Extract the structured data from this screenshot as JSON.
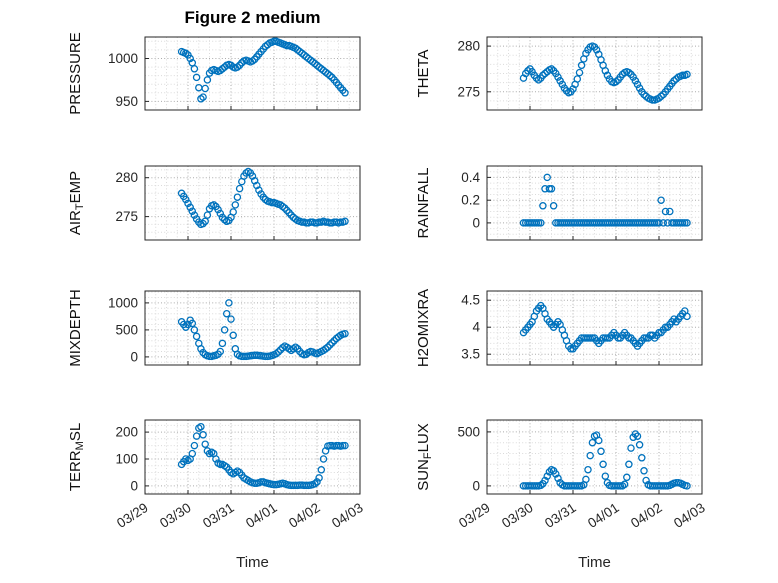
{
  "chart_data": {
    "type": "scatter",
    "title": "Figure 2 medium",
    "xlabel": "Time",
    "x_tick_labels": [
      "03/29",
      "03/30",
      "03/31",
      "04/01",
      "04/02",
      "04/03"
    ],
    "xlim": [
      0,
      5
    ],
    "x_units": "days since 03/29",
    "grid": true,
    "minor_grid": true,
    "marker": {
      "shape": "open-circle",
      "color": "#0072BD"
    },
    "x0": 0.85,
    "dx": 0.05,
    "subplots": [
      {
        "name": "PRESSURE",
        "ylabel": "PRESSURE",
        "row": 0,
        "col": 0,
        "ylim": [
          940,
          1025
        ],
        "yticks": [
          950,
          1000
        ],
        "yminor": 10,
        "y": [
          1008,
          1007,
          1006,
          1004,
          1000,
          995,
          988,
          978,
          966,
          953,
          955,
          965,
          975,
          983,
          986,
          987,
          986,
          985,
          986,
          988,
          990,
          992,
          993,
          992,
          990,
          989,
          990,
          992,
          995,
          997,
          998,
          997,
          996,
          997,
          999,
          1002,
          1005,
          1008,
          1011,
          1014,
          1016,
          1018,
          1019,
          1020,
          1020,
          1019,
          1018,
          1017,
          1016,
          1015,
          1015,
          1014,
          1013,
          1012,
          1010,
          1008,
          1006,
          1004,
          1002,
          1000,
          998,
          996,
          994,
          992,
          990,
          988,
          986,
          984,
          982,
          980,
          978,
          975,
          972,
          969,
          966,
          963,
          960
        ]
      },
      {
        "name": "THETA",
        "ylabel": "THETA",
        "row": 0,
        "col": 1,
        "ylim": [
          273,
          281
        ],
        "yticks": [
          275,
          280
        ],
        "yminor": 1,
        "y": [
          276.5,
          277.0,
          277.3,
          277.5,
          277.2,
          276.8,
          276.5,
          276.3,
          276.5,
          276.8,
          277.0,
          277.2,
          277.4,
          277.5,
          277.3,
          277.0,
          276.6,
          276.2,
          275.8,
          275.4,
          275.1,
          274.9,
          275.0,
          275.3,
          275.8,
          276.4,
          277.1,
          277.9,
          278.6,
          279.2,
          279.6,
          279.9,
          280.0,
          279.9,
          279.6,
          279.1,
          278.5,
          277.9,
          277.3,
          276.8,
          276.4,
          276.1,
          276.0,
          276.1,
          276.3,
          276.6,
          276.9,
          277.1,
          277.2,
          277.1,
          276.9,
          276.6,
          276.2,
          275.8,
          275.4,
          275.0,
          274.7,
          274.5,
          274.3,
          274.2,
          274.1,
          274.1,
          274.2,
          274.3,
          274.5,
          274.7,
          275.0,
          275.3,
          275.6,
          275.9,
          276.2,
          276.4,
          276.6,
          276.7,
          276.8,
          276.8,
          276.9
        ]
      },
      {
        "name": "AIR_TEMP",
        "ylabel": "AIR_TEMP",
        "row": 1,
        "col": 0,
        "ylim": [
          272,
          281.5
        ],
        "yticks": [
          275,
          280
        ],
        "yminor": 1,
        "y": [
          278.0,
          277.6,
          277.2,
          276.7,
          276.2,
          275.7,
          275.2,
          274.7,
          274.3,
          274.0,
          274.1,
          274.4,
          275.2,
          276.0,
          276.4,
          276.5,
          276.3,
          275.9,
          275.4,
          274.9,
          274.6,
          274.4,
          274.5,
          274.9,
          275.6,
          276.5,
          277.5,
          278.6,
          279.5,
          280.2,
          280.6,
          280.8,
          280.6,
          280.2,
          279.6,
          279.0,
          278.4,
          277.9,
          277.5,
          277.2,
          277.0,
          276.9,
          276.8,
          276.8,
          276.7,
          276.6,
          276.5,
          276.3,
          276.1,
          275.8,
          275.5,
          275.2,
          274.9,
          274.7,
          274.5,
          274.4,
          274.3,
          274.3,
          274.2,
          274.2,
          274.3,
          274.3,
          274.2,
          274.2,
          274.3,
          274.3,
          274.4,
          274.3,
          274.3,
          274.2,
          274.2,
          274.3,
          274.3,
          274.2,
          274.3,
          274.3,
          274.4
        ]
      },
      {
        "name": "RAINFALL",
        "ylabel": "RAINFALL",
        "row": 1,
        "col": 1,
        "ylim": [
          -0.15,
          0.5
        ],
        "yticks": [
          0,
          0.2,
          0.4
        ],
        "yminor": 0.05,
        "y": [
          0,
          0,
          0,
          0,
          0,
          0,
          0,
          0,
          0,
          0.15,
          0.3,
          0.4,
          0.3,
          0.3,
          0.15,
          0,
          0,
          0,
          0,
          0,
          0,
          0,
          0,
          0,
          0,
          0,
          0,
          0,
          0,
          0,
          0,
          0,
          0,
          0,
          0,
          0,
          0,
          0,
          0,
          0,
          0,
          0,
          0,
          0,
          0,
          0,
          0,
          0,
          0,
          0,
          0,
          0,
          0,
          0,
          0,
          0,
          0,
          0,
          0,
          0,
          0,
          0,
          0,
          0,
          0.2,
          0,
          0.1,
          0,
          0.1,
          0,
          0,
          0,
          0,
          0,
          0,
          0,
          0
        ]
      },
      {
        "name": "MIXDEPTH",
        "ylabel": "MIXDEPTH",
        "row": 2,
        "col": 0,
        "ylim": [
          -150,
          1220
        ],
        "yticks": [
          0,
          500,
          1000
        ],
        "yminor": 100,
        "y": [
          650,
          600,
          550,
          600,
          680,
          620,
          500,
          380,
          250,
          150,
          80,
          40,
          20,
          10,
          10,
          20,
          30,
          50,
          100,
          250,
          500,
          800,
          1000,
          700,
          400,
          150,
          50,
          20,
          10,
          10,
          10,
          15,
          20,
          25,
          30,
          30,
          25,
          20,
          15,
          10,
          10,
          15,
          25,
          40,
          60,
          90,
          130,
          170,
          200,
          180,
          150,
          120,
          150,
          180,
          150,
          100,
          60,
          40,
          50,
          80,
          100,
          90,
          70,
          60,
          80,
          100,
          120,
          150,
          180,
          220,
          260,
          300,
          340,
          370,
          400,
          420,
          430
        ]
      },
      {
        "name": "H2OMIXRA",
        "ylabel": "H2OMIXRA",
        "row": 2,
        "col": 1,
        "ylim": [
          3.3,
          4.67
        ],
        "yticks": [
          3.5,
          4,
          4.5
        ],
        "yminor": 0.1,
        "y": [
          3.9,
          3.95,
          4.0,
          4.05,
          4.1,
          4.2,
          4.3,
          4.35,
          4.4,
          4.35,
          4.25,
          4.15,
          4.1,
          4.05,
          4.0,
          4.05,
          4.1,
          4.05,
          3.95,
          3.85,
          3.75,
          3.65,
          3.6,
          3.6,
          3.65,
          3.7,
          3.75,
          3.8,
          3.8,
          3.8,
          3.8,
          3.8,
          3.8,
          3.8,
          3.75,
          3.7,
          3.75,
          3.8,
          3.8,
          3.8,
          3.8,
          3.85,
          3.9,
          3.85,
          3.8,
          3.8,
          3.85,
          3.9,
          3.85,
          3.8,
          3.8,
          3.75,
          3.7,
          3.65,
          3.7,
          3.75,
          3.8,
          3.8,
          3.8,
          3.85,
          3.85,
          3.8,
          3.85,
          3.9,
          3.9,
          3.95,
          4.0,
          4.0,
          4.05,
          4.1,
          4.15,
          4.1,
          4.15,
          4.2,
          4.25,
          4.3,
          4.2
        ]
      },
      {
        "name": "TERR_MSL",
        "ylabel": "TERR_MSL",
        "row": 3,
        "col": 0,
        "ylim": [
          -30,
          245
        ],
        "yticks": [
          0,
          100,
          200
        ],
        "yminor": 25,
        "y": [
          80,
          90,
          100,
          95,
          100,
          120,
          150,
          185,
          215,
          220,
          190,
          155,
          130,
          120,
          125,
          120,
          100,
          85,
          80,
          80,
          75,
          70,
          60,
          50,
          45,
          50,
          55,
          50,
          40,
          30,
          25,
          20,
          15,
          12,
          10,
          10,
          12,
          15,
          15,
          12,
          10,
          8,
          6,
          5,
          5,
          6,
          8,
          10,
          8,
          5,
          3,
          2,
          2,
          2,
          2,
          3,
          3,
          2,
          2,
          2,
          3,
          5,
          8,
          15,
          30,
          60,
          100,
          130,
          148,
          150,
          150,
          148,
          150,
          150,
          148,
          150,
          150
        ]
      },
      {
        "name": "SUN_FLUX",
        "ylabel": "SUN_FLUX",
        "row": 3,
        "col": 1,
        "ylim": [
          -75,
          610
        ],
        "yticks": [
          0,
          500
        ],
        "yminor": 100,
        "y": [
          0,
          0,
          0,
          0,
          0,
          0,
          0,
          0,
          5,
          20,
          50,
          90,
          130,
          150,
          140,
          110,
          70,
          30,
          10,
          0,
          0,
          0,
          0,
          0,
          0,
          0,
          0,
          0,
          10,
          60,
          150,
          280,
          400,
          460,
          470,
          420,
          320,
          200,
          90,
          30,
          5,
          0,
          0,
          0,
          0,
          0,
          0,
          15,
          80,
          200,
          350,
          450,
          480,
          460,
          380,
          260,
          140,
          50,
          10,
          0,
          0,
          0,
          0,
          0,
          0,
          0,
          0,
          0,
          5,
          15,
          25,
          30,
          30,
          25,
          15,
          5,
          0
        ]
      }
    ]
  }
}
